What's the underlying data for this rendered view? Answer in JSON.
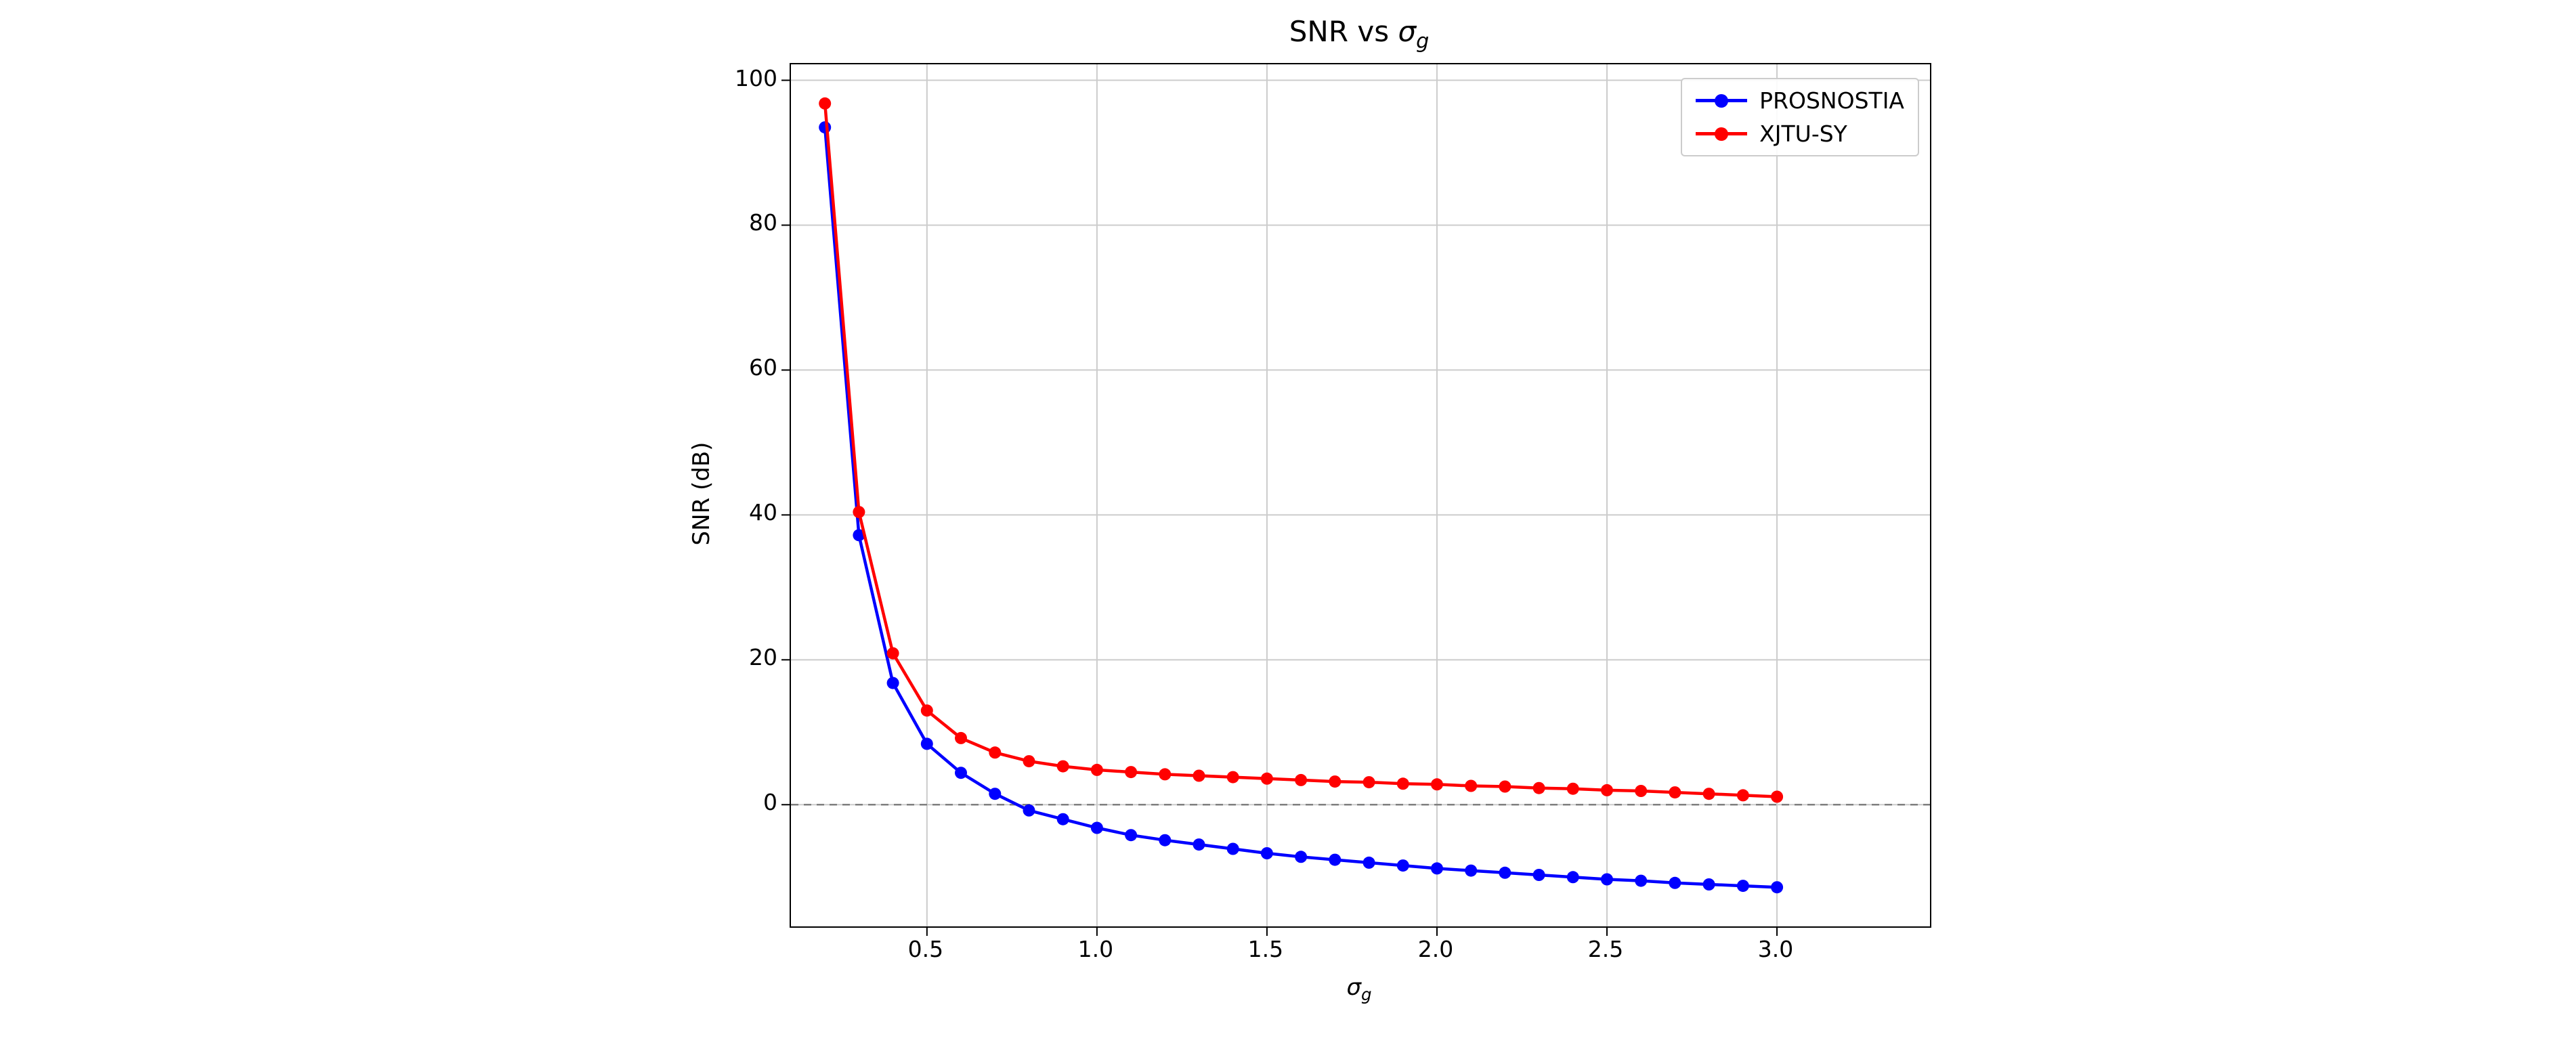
{
  "figure": {
    "background": "#ffffff"
  },
  "chart_data": {
    "type": "line",
    "title": {
      "prefix": "SNR vs ",
      "symbol": "σ",
      "subscript": "g"
    },
    "xlabel": {
      "symbol": "σ",
      "subscript": "g"
    },
    "ylabel": "SNR (dB)",
    "x": [
      0.2,
      0.3,
      0.4,
      0.5,
      0.6,
      0.7,
      0.8,
      0.9,
      1.0,
      1.1,
      1.2,
      1.3,
      1.4,
      1.5,
      1.6,
      1.7,
      1.8,
      1.9,
      2.0,
      2.1,
      2.2,
      2.3,
      2.4,
      2.5,
      2.6,
      2.7,
      2.8,
      2.9,
      3.0
    ],
    "series": [
      {
        "name": "PROSNOSTIA",
        "color": "#0000ff",
        "marker": "circle",
        "values": [
          93.5,
          37.2,
          16.8,
          8.4,
          4.4,
          1.5,
          -0.8,
          -2.0,
          -3.2,
          -4.2,
          -4.9,
          -5.5,
          -6.1,
          -6.7,
          -7.2,
          -7.6,
          -8.0,
          -8.4,
          -8.8,
          -9.1,
          -9.4,
          -9.7,
          -10.0,
          -10.3,
          -10.5,
          -10.8,
          -11.0,
          -11.2,
          -11.4
        ]
      },
      {
        "name": "XJTU-SY",
        "color": "#ff0000",
        "marker": "circle",
        "values": [
          96.8,
          40.4,
          20.9,
          13.0,
          9.2,
          7.2,
          6.0,
          5.3,
          4.8,
          4.5,
          4.2,
          4.0,
          3.8,
          3.6,
          3.4,
          3.2,
          3.1,
          2.9,
          2.8,
          2.6,
          2.5,
          2.3,
          2.2,
          2.0,
          1.9,
          1.7,
          1.5,
          1.3,
          1.1
        ]
      }
    ],
    "xlim": [
      0.1,
      3.45
    ],
    "ylim": [
      -16.8,
      102.2
    ],
    "xticks": {
      "values": [
        0.5,
        1.0,
        1.5,
        2.0,
        2.5,
        3.0
      ],
      "labels": [
        "0.5",
        "1.0",
        "1.5",
        "2.0",
        "2.5",
        "3.0"
      ]
    },
    "yticks": {
      "values": [
        0,
        20,
        40,
        60,
        80,
        100
      ],
      "labels": [
        "0",
        "20",
        "40",
        "60",
        "80",
        "100"
      ]
    },
    "grid": true,
    "grid_color": "#cccccc",
    "zero_line": {
      "y": 0,
      "style": "dashed",
      "color": "#7f7f7f"
    },
    "legend": {
      "position": "upper-right"
    }
  }
}
